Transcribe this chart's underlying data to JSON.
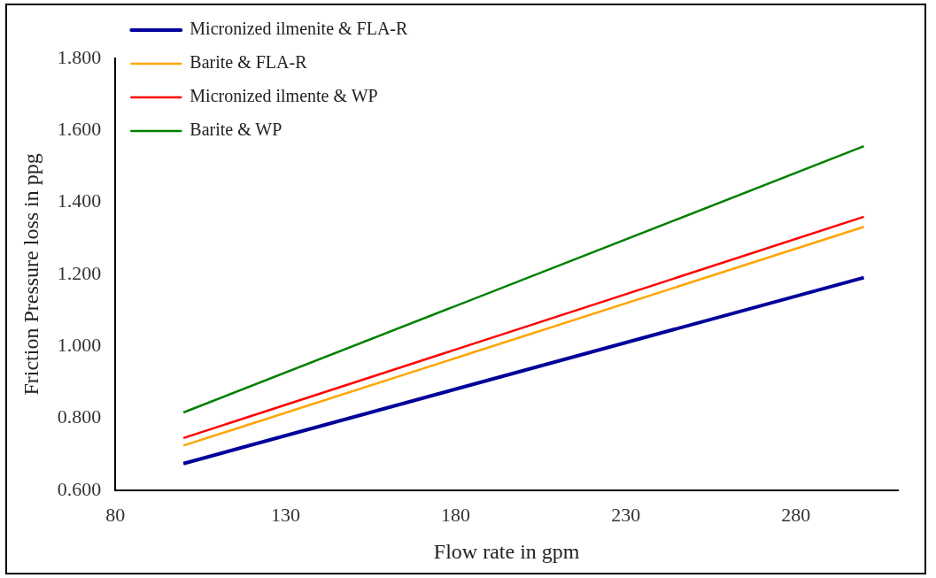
{
  "chart_data": {
    "type": "line",
    "xlabel": "Flow rate in gpm",
    "ylabel": "Friction Pressure loss in ppg",
    "x": [
      100,
      300
    ],
    "series": [
      {
        "name": "Micronized ilmenite & FLA-R",
        "color": "#000099",
        "values": [
          0.674,
          1.191
        ]
      },
      {
        "name": "Barite & FLA-R",
        "color": "#ffa500",
        "values": [
          0.724,
          1.332
        ]
      },
      {
        "name": "Micronized ilmente & WP",
        "color": "#ff0000",
        "values": [
          0.745,
          1.36
        ]
      },
      {
        "name": "Barite & WP",
        "color": "#008000",
        "values": [
          0.816,
          1.556
        ]
      }
    ],
    "xlim": [
      80,
      310
    ],
    "xticks": [
      80,
      130,
      180,
      230,
      280
    ],
    "ylim": [
      0.6,
      1.8
    ],
    "yticks": [
      {
        "value": 0.6,
        "label": "0.600"
      },
      {
        "value": 0.8,
        "label": "0.800"
      },
      {
        "value": 1.0,
        "label": "1.000"
      },
      {
        "value": 1.2,
        "label": "1.200"
      },
      {
        "value": 1.4,
        "label": "1.400"
      },
      {
        "value": 1.6,
        "label": "1.600"
      },
      {
        "value": 1.8,
        "label": "1.800"
      }
    ],
    "grid": false,
    "legend": "top left",
    "marker": "none",
    "line_style": "solid"
  }
}
